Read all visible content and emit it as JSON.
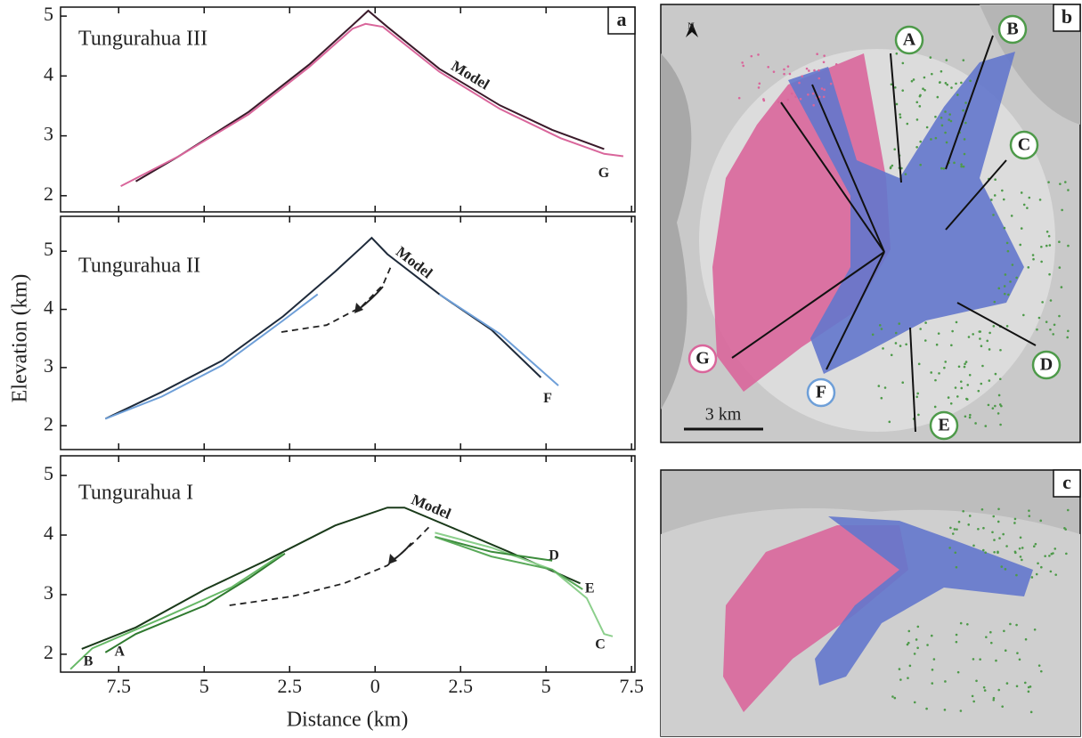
{
  "chart_data": [
    {
      "type": "line",
      "title": "Tungurahua III",
      "title_color": "#d9669b",
      "panel_label": "a",
      "xlim": [
        -9.2,
        7.6
      ],
      "ylim": [
        1.73,
        5.15
      ],
      "xticks": [
        {
          "value": -7.5,
          "label": "7.5"
        },
        {
          "value": -5,
          "label": "5"
        },
        {
          "value": -2.5,
          "label": "2.5"
        },
        0,
        2.5,
        5,
        7.5
      ],
      "yticks": [
        2,
        3,
        4,
        5
      ],
      "show_xtick_labels": false,
      "series": [
        {
          "name": "Model",
          "color": "#3a1a2a",
          "x": [
            -7.0,
            -5.74,
            -3.7,
            -1.93,
            -0.66,
            -0.2,
            0.36,
            1.88,
            3.65,
            5.18,
            6.7
          ],
          "values": [
            2.24,
            2.66,
            3.4,
            4.19,
            4.85,
            5.09,
            4.82,
            4.12,
            3.51,
            3.1,
            2.78
          ]
        },
        {
          "name": "G",
          "color": "#d9669b",
          "x": [
            -7.44,
            -5.74,
            -3.7,
            -1.93,
            -0.66,
            -0.28,
            0.23,
            1.88,
            3.65,
            5.43,
            6.7,
            7.26
          ],
          "values": [
            2.16,
            2.66,
            3.36,
            4.15,
            4.79,
            4.87,
            4.82,
            4.07,
            3.45,
            2.96,
            2.7,
            2.66
          ]
        }
      ]
    },
    {
      "type": "line",
      "title": "Tungurahua II",
      "title_color": "#6e8fd0",
      "panel_label": null,
      "y_label": "Elevation (km)",
      "xlim": [
        -9.2,
        7.6
      ],
      "ylim": [
        1.59,
        5.6
      ],
      "xticks": [
        {
          "value": -7.5,
          "label": "7.5"
        },
        {
          "value": -5,
          "label": "5"
        },
        {
          "value": -2.5,
          "label": "2.5"
        },
        0,
        2.5,
        5,
        7.5
      ],
      "yticks": [
        2,
        3,
        4,
        5
      ],
      "show_xtick_labels": false,
      "series": [
        {
          "name": "Model",
          "color": "#1e2a3a",
          "x": [
            -7.89,
            -6.24,
            -4.47,
            -2.69,
            -1.17,
            -0.41,
            -0.1,
            0.36,
            1.88,
            3.4,
            4.85
          ],
          "values": [
            2.12,
            2.58,
            3.12,
            3.88,
            4.65,
            5.06,
            5.23,
            4.95,
            4.26,
            3.65,
            2.83
          ]
        },
        {
          "name": "F",
          "color": "#6e9fd8",
          "x": [
            -7.89,
            -6.24,
            -4.47,
            -2.69,
            -1.68,
            0.74,
            1.88,
            3.65,
            4.92,
            5.36
          ],
          "values": [
            2.12,
            2.5,
            3.04,
            3.81,
            4.26,
            null,
            4.26,
            3.58,
            2.92,
            2.69
          ]
        },
        {
          "dashed": true,
          "color": "#222222",
          "x": [
            -2.74,
            -1.42,
            -0.41,
            0.23,
            0.48
          ],
          "values": [
            3.61,
            3.73,
            4.04,
            4.42,
            4.76
          ]
        }
      ]
    },
    {
      "type": "line",
      "title": "Tungurahua I",
      "title_color": "#4e9a4a",
      "panel_label": null,
      "x_label": "Distance (km)",
      "xlim": [
        -9.2,
        7.6
      ],
      "ylim": [
        1.7,
        5.33
      ],
      "xticks": [
        {
          "value": -7.5,
          "label": "7.5"
        },
        {
          "value": -5,
          "label": "5"
        },
        {
          "value": -2.5,
          "label": "2.5"
        },
        0,
        2.5,
        5,
        7.5
      ],
      "yticks": [
        2,
        3,
        4,
        5
      ],
      "show_xtick_labels": true,
      "series": [
        {
          "name": "Model",
          "color": "#1a3a1a",
          "x": [
            -8.58,
            -7.0,
            -4.97,
            -3.2,
            -1.17,
            0.36,
            0.86,
            2.39,
            3.91,
            6.0
          ],
          "values": [
            2.09,
            2.45,
            3.09,
            3.57,
            4.16,
            4.46,
            4.46,
            4.09,
            3.72,
            3.19
          ]
        },
        {
          "name": "A",
          "color": "#2f7a2f",
          "x": [
            -7.89,
            -7.0,
            -4.97,
            -3.7,
            -2.64
          ],
          "values": [
            2.03,
            2.34,
            2.82,
            3.27,
            3.69
          ]
        },
        {
          "name": "B",
          "color": "#66b866",
          "x": [
            -8.91,
            -8.27,
            -6.24,
            -4.21,
            -2.69
          ],
          "values": [
            1.75,
            2.1,
            2.6,
            3.12,
            3.69
          ]
        },
        {
          "name": "C",
          "color": "#8ccf8c",
          "x": [
            1.75,
            3.4,
            5.18,
            6.19,
            6.7,
            6.95
          ],
          "values": [
            4.04,
            3.79,
            3.42,
            2.94,
            2.34,
            2.3
          ]
        },
        {
          "name": "D",
          "color": "#3c8c3c",
          "x": [
            1.75,
            3.4,
            5.18
          ],
          "values": [
            3.97,
            3.72,
            3.57
          ]
        },
        {
          "name": "E",
          "color": "#5aaa5a",
          "x": [
            1.75,
            3.4,
            5.18,
            6.07
          ],
          "values": [
            3.97,
            3.64,
            3.42,
            3.09
          ]
        },
        {
          "dashed": true,
          "color": "#222222",
          "x": [
            -4.26,
            -2.44,
            -0.91,
            0.36,
            1.12,
            1.57
          ],
          "values": [
            2.82,
            2.97,
            3.19,
            3.49,
            3.87,
            4.13
          ]
        }
      ]
    }
  ],
  "maps": [
    {
      "panel_label": "b",
      "north": "N",
      "scale_bar": "3 km",
      "markers": [
        "A",
        "B",
        "C",
        "D",
        "E",
        "F",
        "G"
      ]
    },
    {
      "panel_label": "c"
    }
  ]
}
